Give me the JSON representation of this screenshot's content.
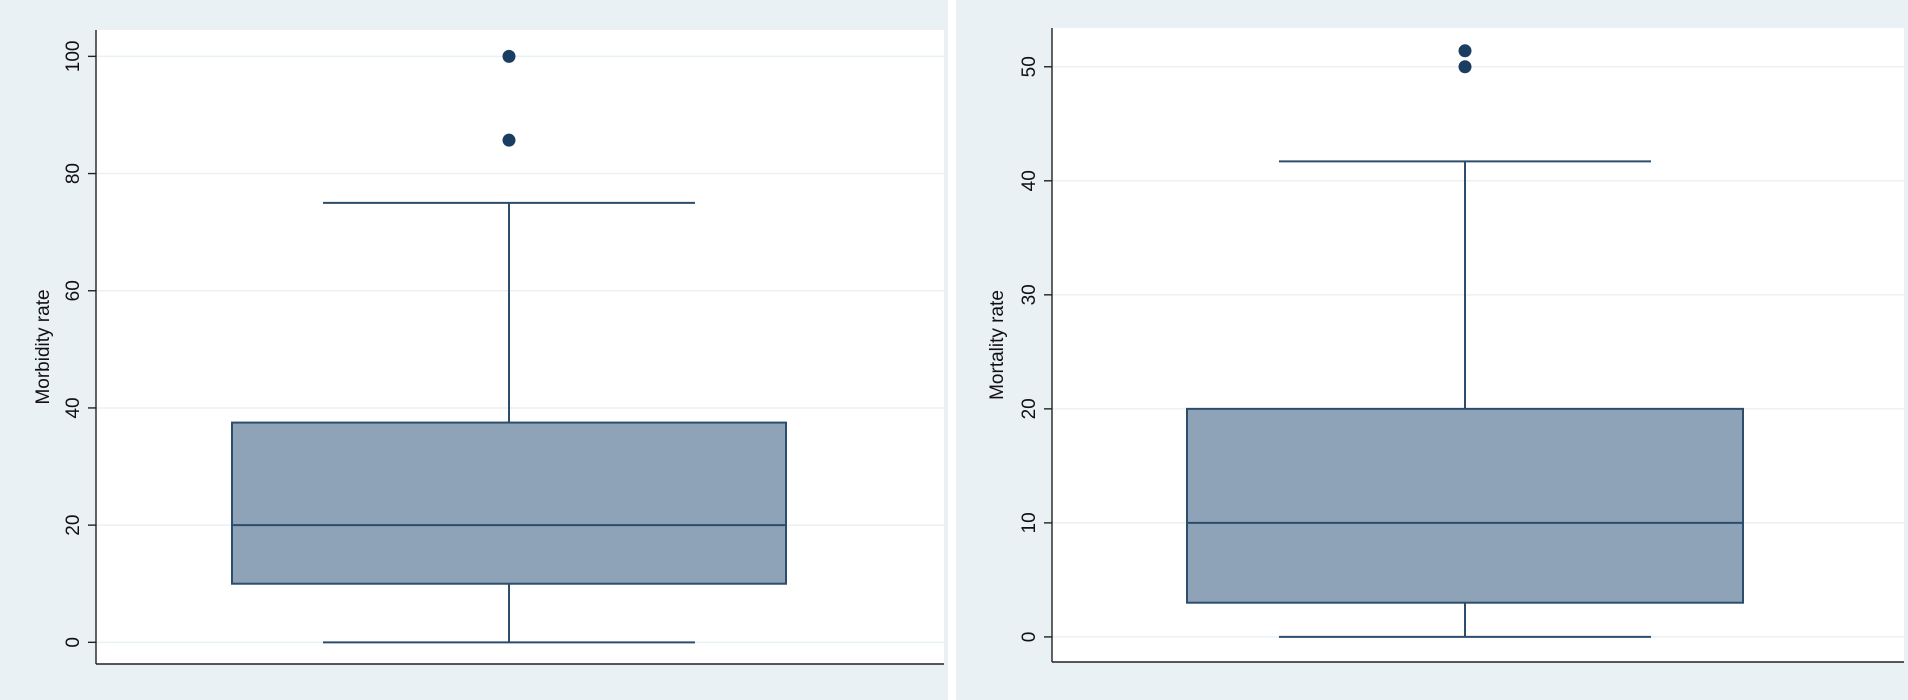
{
  "chart_data": [
    {
      "type": "box",
      "title": "",
      "xlabel": "",
      "ylabel": "Morbidity rate",
      "ylim": [
        -3.7,
        104.5
      ],
      "yticks": [
        0,
        20,
        40,
        60,
        80,
        100
      ],
      "grid": true,
      "box": {
        "min": 0,
        "q1": 10,
        "median": 20,
        "q3": 37.5,
        "max": 75
      },
      "outliers": [
        85.7,
        100
      ],
      "colors": {
        "box_fill": "#8ea3b8",
        "box_line": "#2c4d6b",
        "outlier": "#1a3d61",
        "background": "#e9f1f5",
        "plot_bg": "#ffffff",
        "grid": "#e9f1f5"
      }
    },
    {
      "type": "box",
      "title": "",
      "xlabel": "",
      "ylabel": "Mortality rate",
      "ylim": [
        -2.2,
        53.4
      ],
      "yticks": [
        0,
        10,
        20,
        30,
        40,
        50
      ],
      "grid": true,
      "box": {
        "min": 0,
        "q1": 3,
        "median": 10,
        "q3": 20,
        "max": 41.7
      },
      "outliers": [
        50,
        51.4
      ],
      "colors": {
        "box_fill": "#8ea3b8",
        "box_line": "#2c4d6b",
        "outlier": "#1a3d61",
        "background": "#e9f1f5",
        "plot_bg": "#ffffff",
        "grid": "#e9f1f5"
      }
    }
  ]
}
